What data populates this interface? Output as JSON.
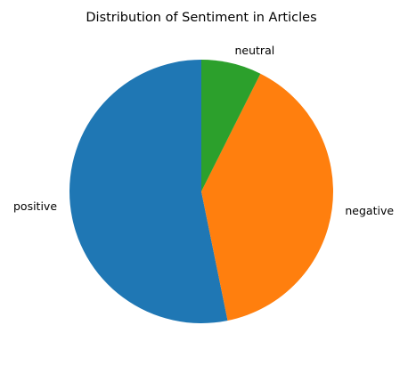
{
  "chart_data": {
    "type": "pie",
    "title": "Distribution of Sentiment in Articles",
    "labels": [
      "positive",
      "negative",
      "neutral"
    ],
    "values": [
      53.2,
      39.4,
      7.4
    ],
    "colors": [
      "#1f77b4",
      "#ff7f0e",
      "#2ca02c"
    ],
    "start_angle_deg": 90,
    "direction": "counterclockwise"
  }
}
